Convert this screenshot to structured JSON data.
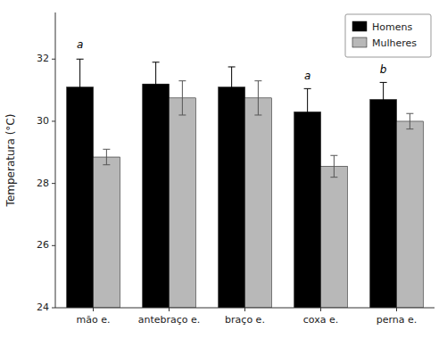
{
  "chart_data": {
    "type": "bar",
    "ylabel": "Temperatura (°C)",
    "categories": [
      "mão e.",
      "antebraço e.",
      "braço e.",
      "coxa e.",
      "perna e."
    ],
    "series": [
      {
        "name": "Homens",
        "color": "#000000",
        "values": [
          31.1,
          31.2,
          31.1,
          30.3,
          30.7
        ],
        "errors": [
          0.9,
          0.7,
          0.65,
          0.75,
          0.55
        ]
      },
      {
        "name": "Mulheres",
        "color": "#b8b8b8",
        "values": [
          28.85,
          30.75,
          30.75,
          28.55,
          30.0
        ],
        "errors": [
          0.25,
          0.55,
          0.55,
          0.35,
          0.25
        ]
      }
    ],
    "ylim": [
      24,
      33.5
    ],
    "yticks": [
      24,
      26,
      28,
      30,
      32
    ],
    "grid": false,
    "legend": "upper right",
    "annotations": [
      {
        "text": "a",
        "category": "mão e.",
        "series": "Homens",
        "y": 32.3
      },
      {
        "text": "a",
        "category": "coxa e.",
        "series": "Homens",
        "y": 31.3
      },
      {
        "text": "b",
        "category": "perna e.",
        "series": "Homens",
        "y": 31.5
      }
    ]
  }
}
